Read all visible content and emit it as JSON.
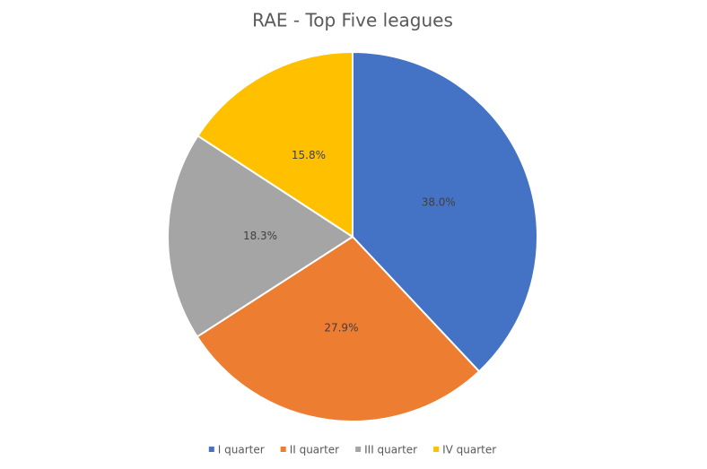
{
  "chart_data": {
    "type": "pie",
    "title": "RAE - Top Five leagues",
    "categories": [
      "I quarter",
      "II quarter",
      "III quarter",
      "IV quarter"
    ],
    "values": [
      38.0,
      27.9,
      18.3,
      15.8
    ],
    "value_labels": [
      "38.0%",
      "27.9%",
      "18.3%",
      "15.8%"
    ],
    "colors": [
      "#4472c4",
      "#ed7d31",
      "#a5a5a5",
      "#ffc000"
    ],
    "legend": "bottom"
  }
}
